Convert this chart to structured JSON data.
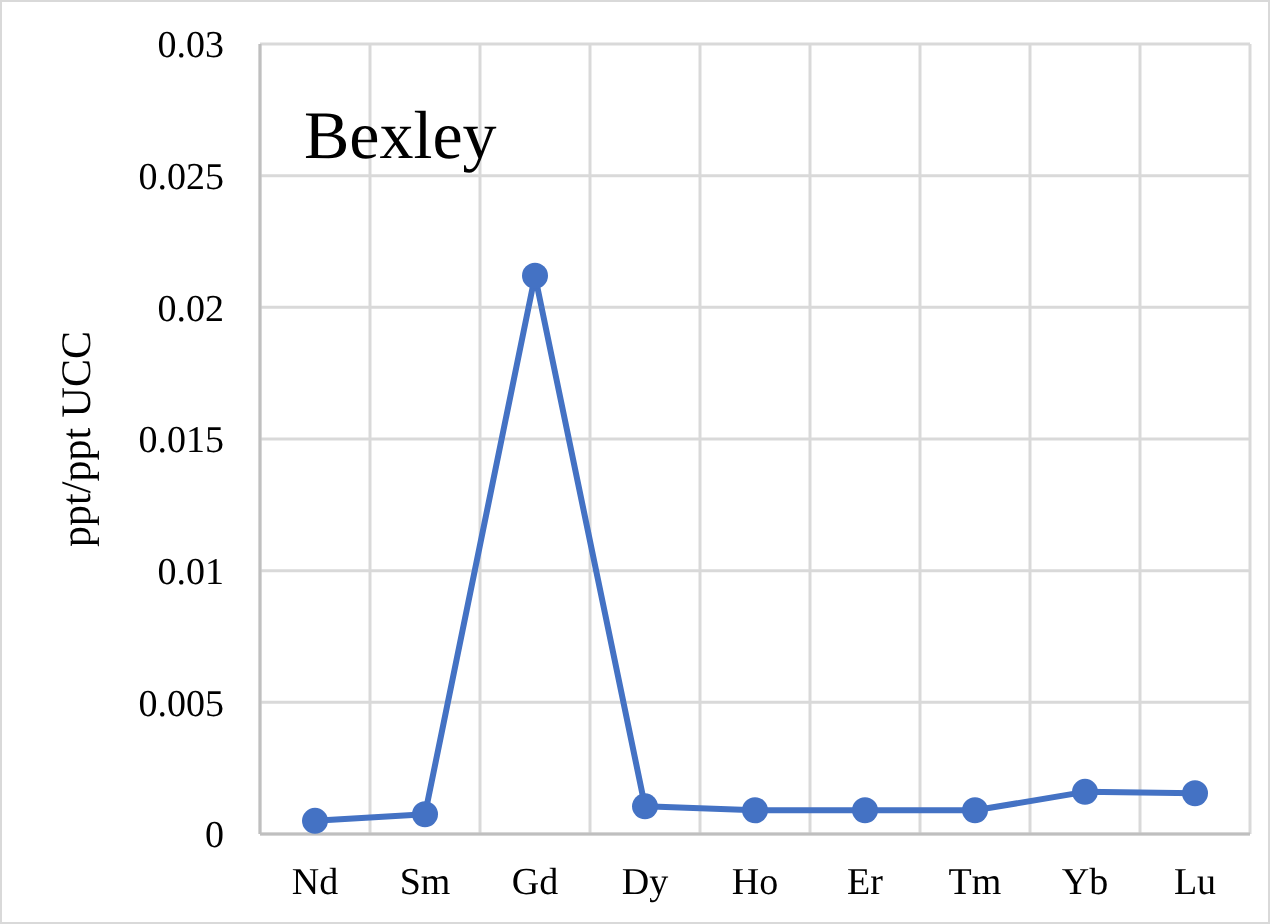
{
  "chart_data": {
    "type": "line",
    "title": "Bexley",
    "ylabel": "ppt/ppt UCC",
    "categories": [
      "Nd",
      "Sm",
      "Gd",
      "Dy",
      "Ho",
      "Er",
      "Tm",
      "Yb",
      "Lu"
    ],
    "series": [
      {
        "color": "#4472c4",
        "values": [
          0.0005,
          0.00075,
          0.0212,
          0.00105,
          0.0009,
          0.0009,
          0.0009,
          0.0016,
          0.00155
        ]
      }
    ],
    "ylim": [
      0,
      0.03
    ],
    "yticks": [
      0,
      0.005,
      0.01,
      0.015,
      0.02,
      0.025,
      0.03
    ],
    "grid": true,
    "marker": "circle",
    "line_style": "solid"
  }
}
